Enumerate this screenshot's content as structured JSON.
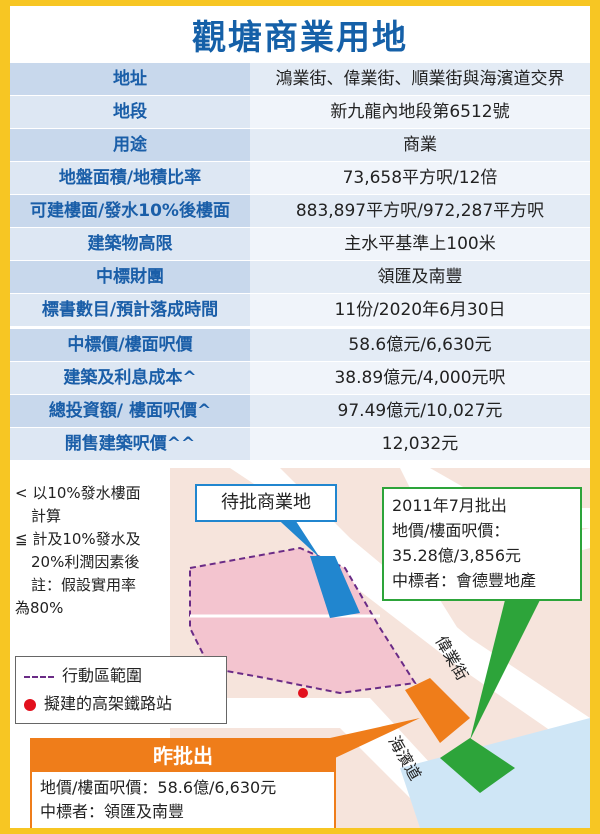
{
  "title": "觀塘商業用地",
  "table": [
    {
      "label": "地址",
      "value": "鴻業街、偉業街、順業街與海濱道交界"
    },
    {
      "label": "地段",
      "value": "新九龍內地段第6512號"
    },
    {
      "label": "用途",
      "value": "商業"
    },
    {
      "label": "地盤面積/地積比率",
      "value": "73,658平方呎/12倍"
    },
    {
      "label": "可建樓面/發水10%後樓面",
      "value": "883,897平方呎/972,287平方呎"
    },
    {
      "label": "建築物高限",
      "value": "主水平基準上100米"
    },
    {
      "label": "中標財團",
      "value": "領匯及南豐"
    },
    {
      "label": "標書數目/預計落成時間",
      "value": "11份/2020年6月30日"
    },
    {
      "label": "中標價/樓面呎價",
      "value": "58.6億元/6,630元"
    },
    {
      "label": "建築及利息成本^",
      "value": "38.89億元/4,000元呎"
    },
    {
      "label": "總投資額/ 樓面呎價^",
      "value": "97.49億元/10,027元"
    },
    {
      "label": "開售建築呎價^^",
      "value": "12,032元"
    }
  ],
  "notes": {
    "line1": "< 以10%發水樓面",
    "line2": "計算",
    "line3": "≦ 計及10%發水及",
    "line4": "20%利潤因素後",
    "line5": "註：假設實用率",
    "line6": "為80%"
  },
  "legend": {
    "area": "行動區範圍",
    "station": "擬建的高架鐵路站"
  },
  "callouts": {
    "pending": "待批商業地",
    "green_l1": "2011年7月批出",
    "green_l2": "地價/樓面呎價：",
    "green_l3": "35.28億/3,856元",
    "green_l4": "中標者：會德豐地產"
  },
  "streets": {
    "wai_yip": "偉業街",
    "hoi_bun": "海濱道"
  },
  "approved": {
    "title": "昨批出",
    "line1": "地價/樓面呎價：58.6億/6,630元",
    "line2": "中標者：領匯及南豐"
  },
  "colors": {
    "frame": "#f7c623",
    "title": "#1560a8",
    "orange": "#ef7d1a",
    "green": "#2da43a",
    "blue": "#2186cf"
  }
}
